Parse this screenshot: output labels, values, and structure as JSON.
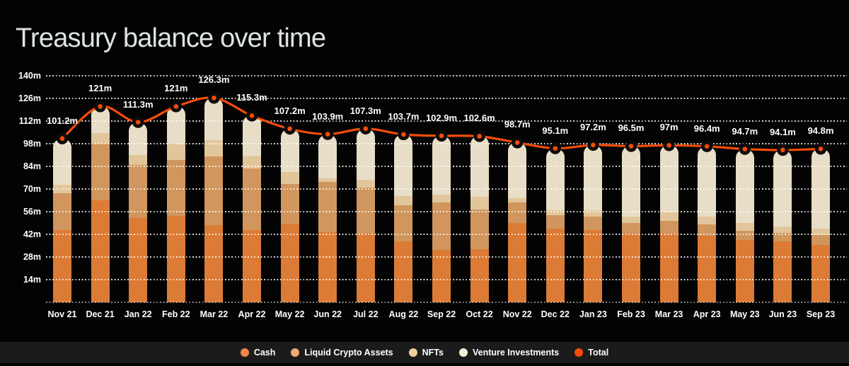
{
  "title": "Treasury balance over time",
  "colors": {
    "background": "#030303",
    "title": "#dde5de",
    "axis_text": "#ffffff",
    "legend_strip": "#1b1b1b",
    "total_line": "#f44d08",
    "marker_ring": "#0d0b09",
    "bars": {
      "cash": "#dc7b35",
      "liquid_crypto": "#d0965e",
      "nfts": "#e2c69b",
      "venture": "#e8ddc6"
    },
    "legend_dots": {
      "cash": "#ef8748",
      "liquid_crypto": "#f2aa71",
      "nfts": "#f3cf9f",
      "venture": "#f7ecd9",
      "total": "#f44d08"
    }
  },
  "legend": {
    "items": [
      {
        "key": "cash",
        "label": "Cash"
      },
      {
        "key": "liquid_crypto",
        "label": "Liquid Crypto Assets"
      },
      {
        "key": "nfts",
        "label": "NFTs"
      },
      {
        "key": "venture",
        "label": "Venture Investments"
      },
      {
        "key": "total",
        "label": "Total"
      }
    ]
  },
  "chart_data": {
    "type": "bar",
    "stacked": true,
    "unit": "m",
    "grid": "dotted-horizontal",
    "legend_position": "bottom",
    "ylim": [
      0,
      147
    ],
    "y_tick_values": [
      140,
      126,
      112,
      98,
      84,
      70,
      56,
      42,
      28,
      14
    ],
    "y_tick_labels": [
      "140m",
      "126m",
      "112m",
      "98m",
      "84m",
      "70m",
      "56m",
      "42m",
      "28m",
      "14m"
    ],
    "categories": [
      "Nov 21",
      "Dec 21",
      "Jan 22",
      "Feb 22",
      "Mar 22",
      "Apr 22",
      "May 22",
      "Jun 22",
      "Jul 22",
      "Aug 22",
      "Sep 22",
      "Oct 22",
      "Nov 22",
      "Dec 22",
      "Jan 23",
      "Feb 23",
      "Mar 23",
      "Apr 23",
      "May 23",
      "Jun 23",
      "Sep 23"
    ],
    "series": [
      {
        "name": "Cash",
        "key": "cash",
        "values": [
          44.5,
          63,
          52,
          53.5,
          47.5,
          44.5,
          48.5,
          43.5,
          42.5,
          37.5,
          32.5,
          33,
          49,
          45.5,
          44.5,
          42.5,
          42.5,
          41,
          38.5,
          37.5,
          35.5
        ]
      },
      {
        "name": "Liquid Crypto Assets",
        "key": "liquid_crypto",
        "values": [
          23,
          35,
          33,
          34.5,
          42.5,
          38,
          24.5,
          31,
          28.5,
          22.5,
          29,
          24.5,
          12.5,
          8.3,
          8.5,
          6.5,
          8,
          7,
          5.5,
          5.5,
          6
        ]
      },
      {
        "name": "NFTs",
        "key": "nfts",
        "values": [
          5,
          6.5,
          6,
          10,
          10,
          8,
          7.5,
          2,
          4.5,
          5.5,
          5,
          7.5,
          3,
          2.9,
          4,
          4,
          5,
          5,
          5,
          4,
          4
        ]
      },
      {
        "name": "Venture Investments",
        "key": "venture",
        "values": [
          28.7,
          16.5,
          20.3,
          23,
          26.3,
          24.8,
          26.7,
          27.4,
          31.8,
          38.2,
          36.4,
          37.6,
          34.2,
          38.4,
          40.2,
          43.5,
          41.5,
          43.4,
          45.7,
          47.1,
          49.3
        ]
      }
    ],
    "line_series": {
      "name": "Total",
      "key": "total",
      "values": [
        101.2,
        121,
        111.3,
        121,
        126.3,
        115.3,
        107.2,
        103.9,
        107.3,
        103.7,
        102.9,
        102.6,
        98.7,
        95.1,
        97.2,
        96.5,
        97,
        96.4,
        94.7,
        94.1,
        94.8
      ],
      "labels": [
        "101.2m",
        "121m",
        "111.3m",
        "121m",
        "126.3m",
        "115.3m",
        "107.2m",
        "103.9m",
        "107.3m",
        "103.7m",
        "102.9m",
        "102.6m",
        "98.7m",
        "95.1m",
        "97.2m",
        "96.5m",
        "97m",
        "96.4m",
        "94.7m",
        "94.1m",
        "94.8m"
      ]
    }
  }
}
